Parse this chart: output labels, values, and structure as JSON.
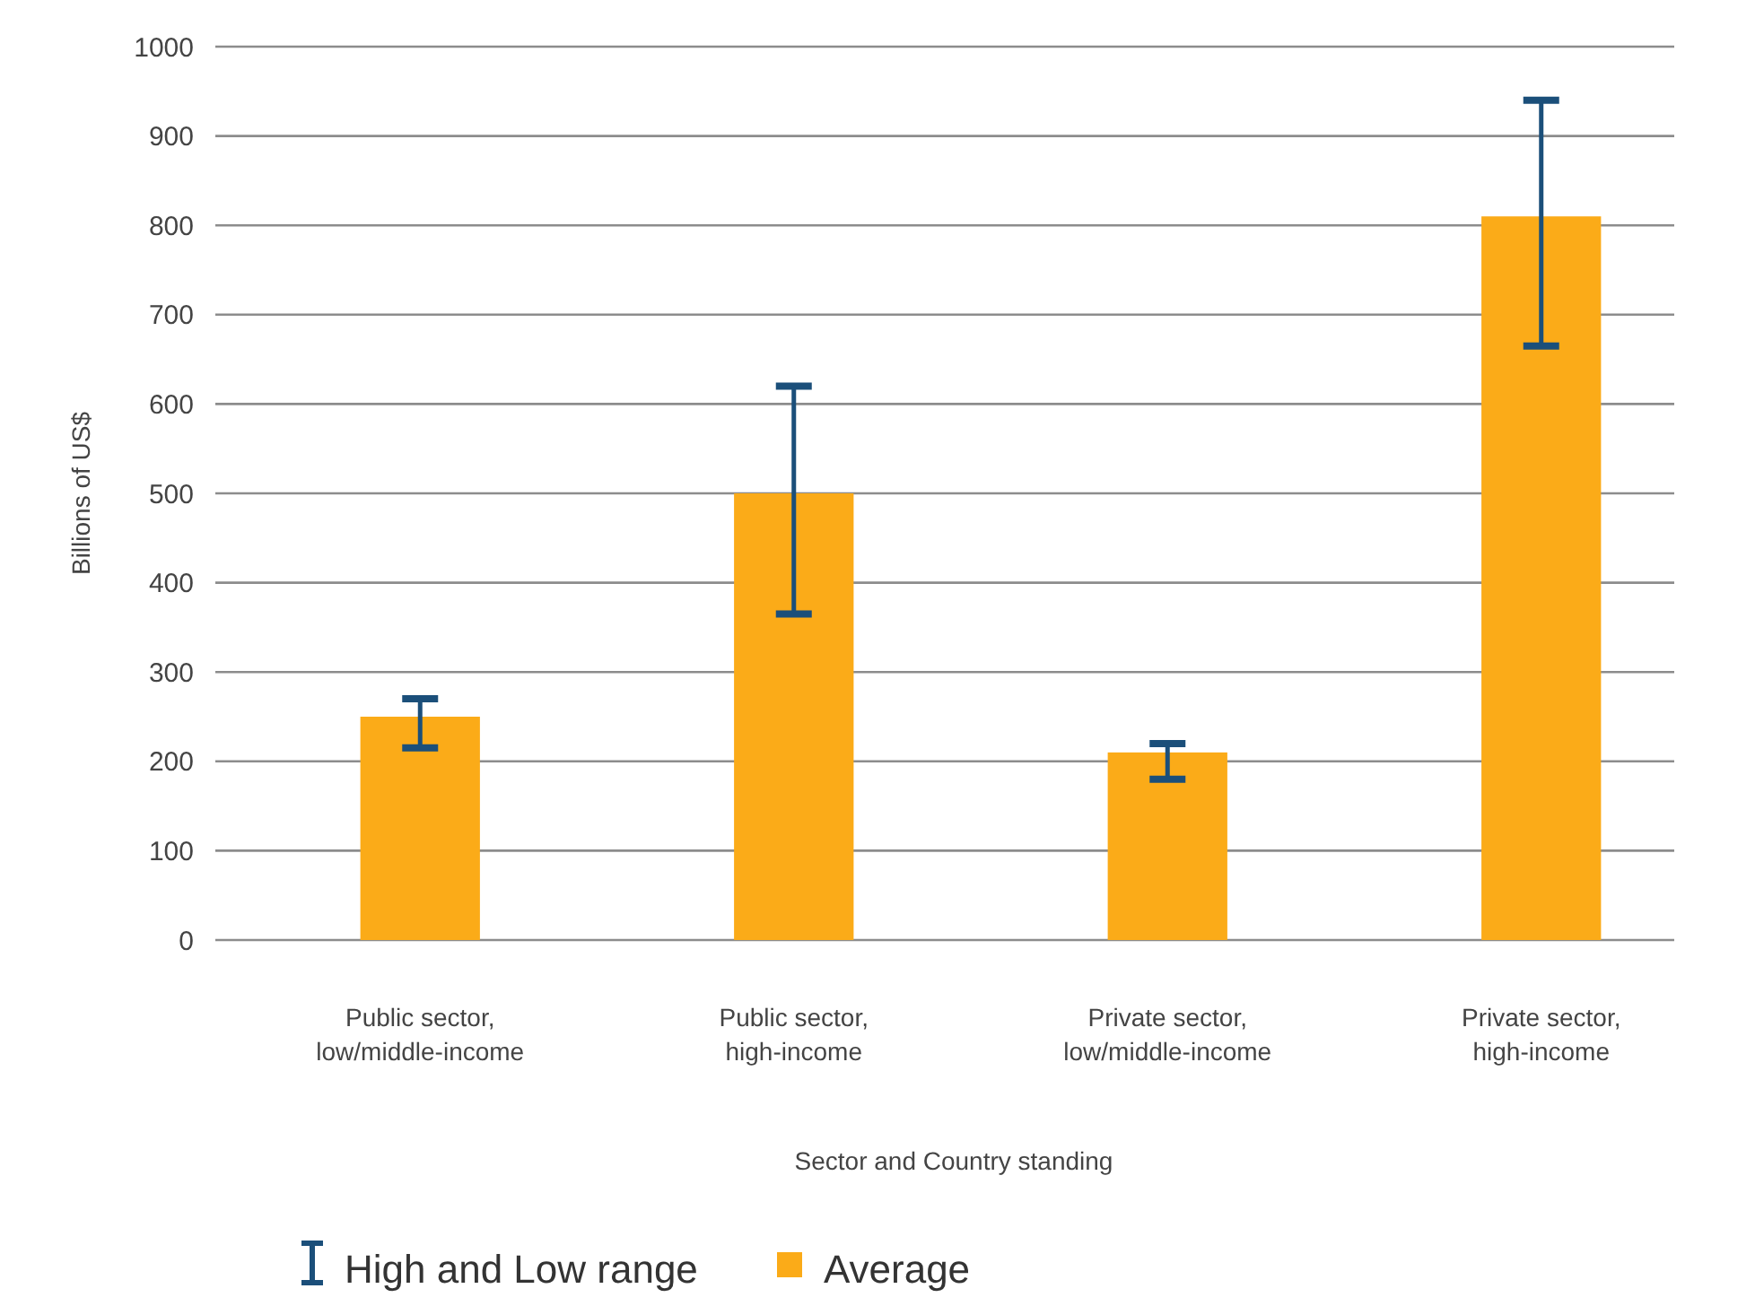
{
  "chart_data": {
    "type": "bar",
    "xlabel": "Sector and Country standing",
    "ylabel": "Billions of US$",
    "categories": [
      "Public sector,\nlow/middle-income",
      "Public sector,\nhigh-income",
      "Private sector,\nlow/middle-income",
      "Private sector,\nhigh-income"
    ],
    "series": [
      {
        "name": "Average",
        "color": "#fbab18",
        "values": [
          250,
          500,
          210,
          810
        ],
        "errors": [
          [
            215,
            270
          ],
          [
            365,
            620
          ],
          [
            180,
            220
          ],
          [
            665,
            940
          ]
        ]
      }
    ],
    "ylim": [
      0,
      1000
    ],
    "yticks": [
      0,
      100,
      200,
      300,
      400,
      500,
      600,
      700,
      800,
      900,
      1000
    ],
    "grid": "y",
    "legend": "bottom",
    "annotations": [
      "High and Low range"
    ]
  }
}
